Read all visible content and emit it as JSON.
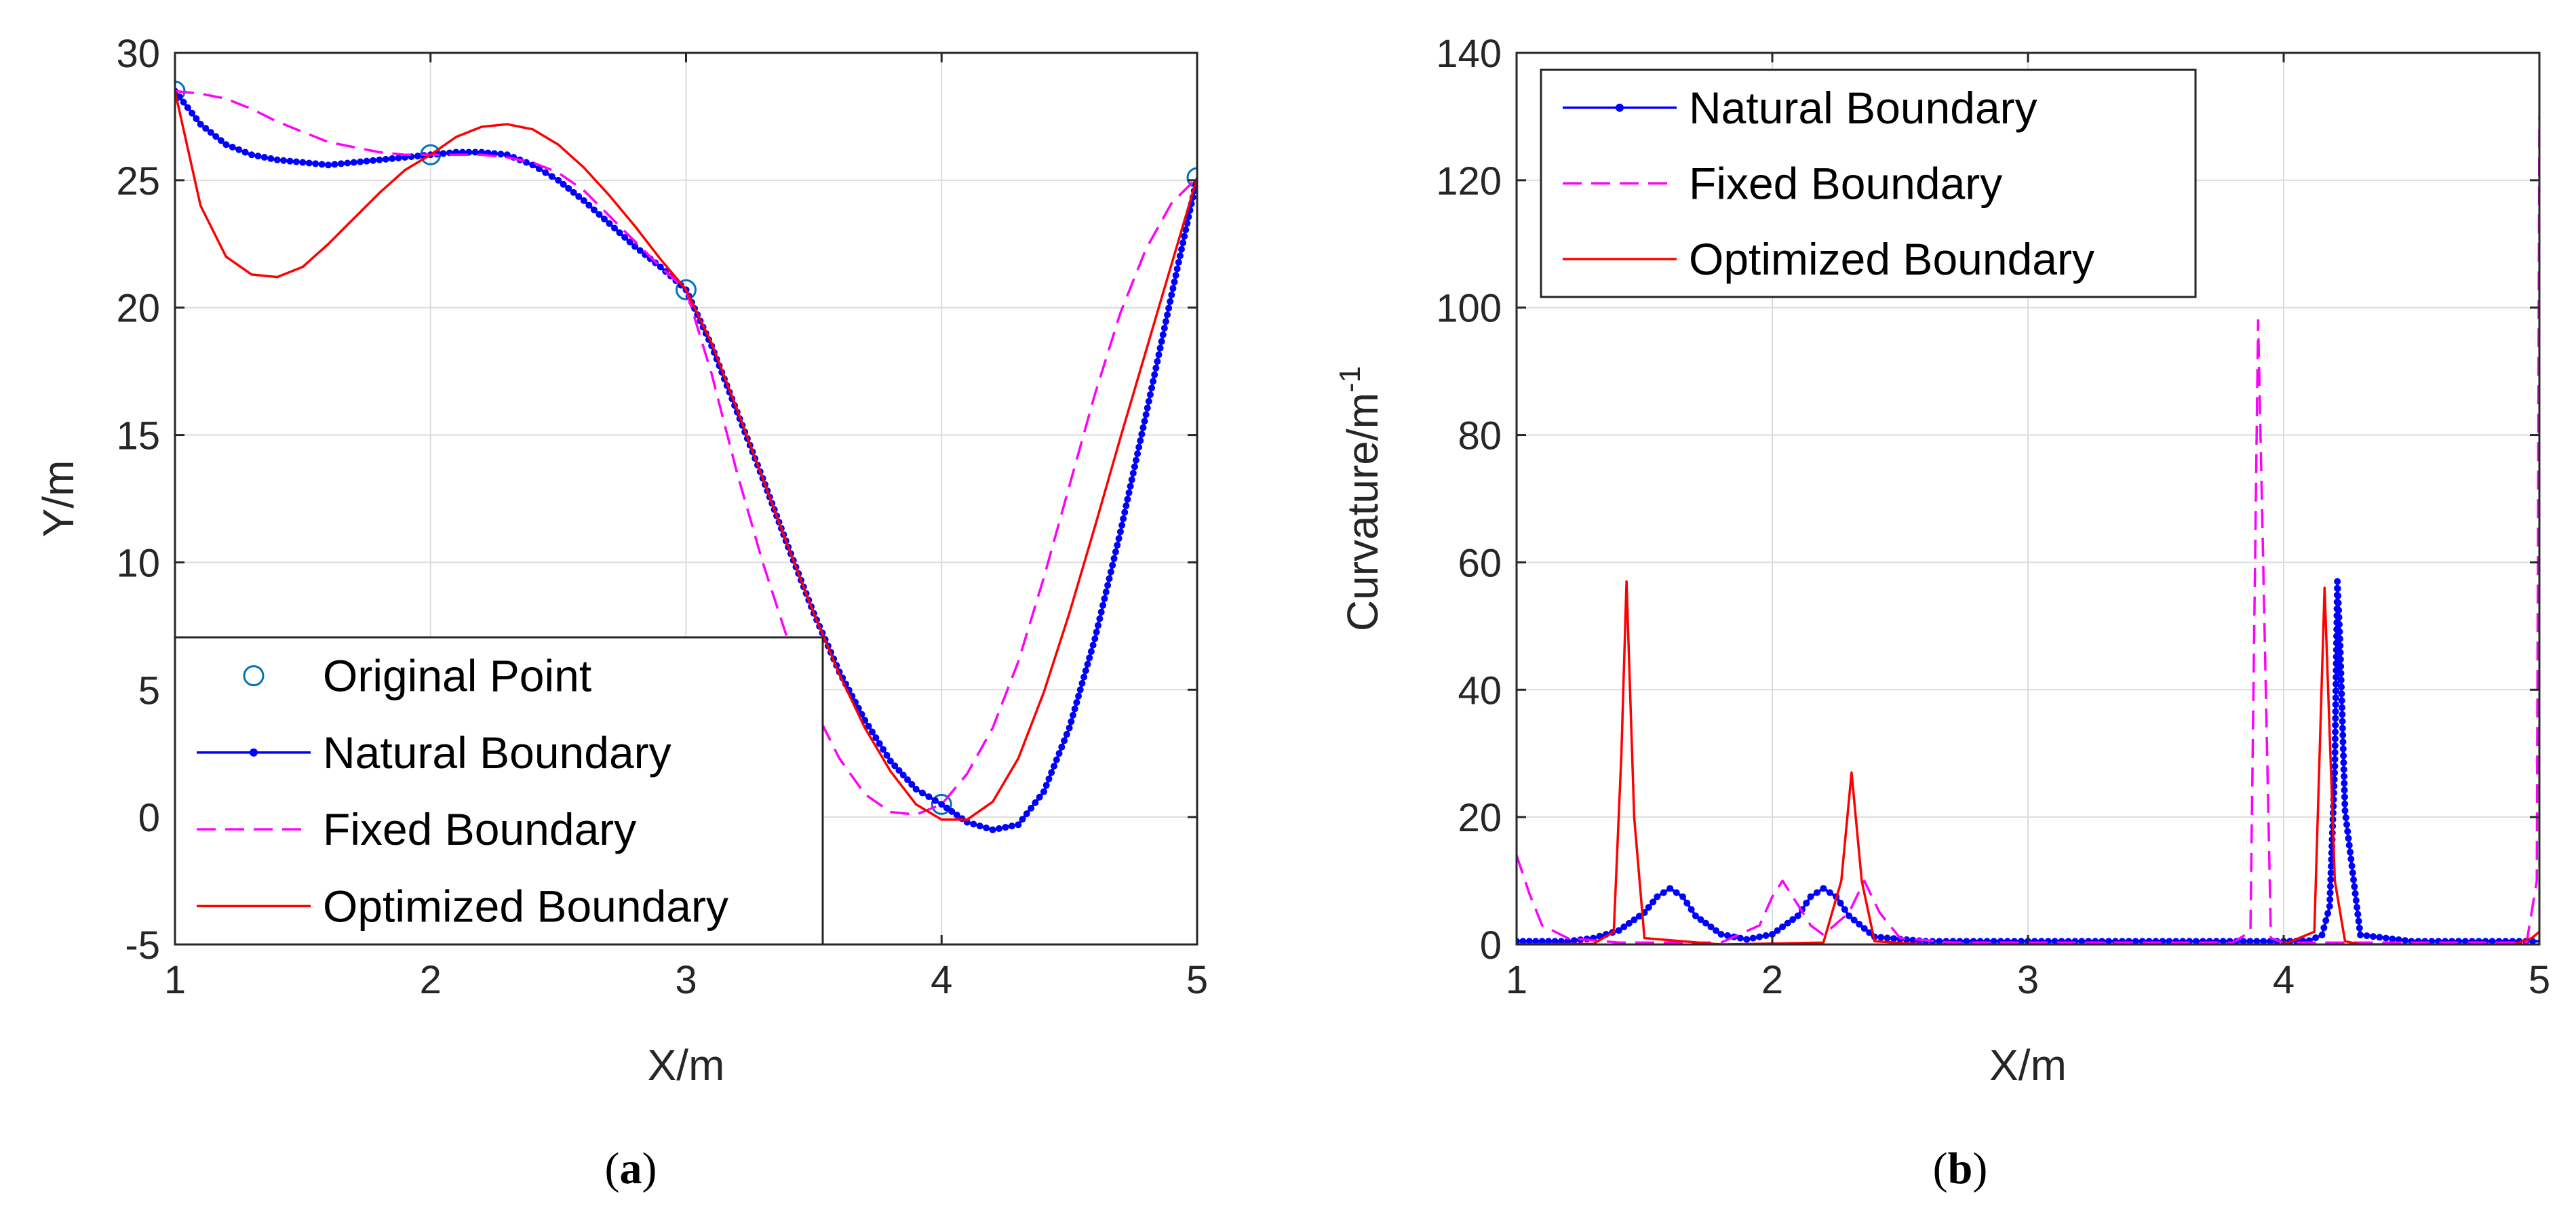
{
  "chart_data": [
    {
      "type": "line",
      "panel": "a",
      "caption": {
        "open": "(",
        "letter": "a",
        "close": ")"
      },
      "xlabel": "X/m",
      "ylabel": "Y/m",
      "xlim": [
        1,
        5
      ],
      "ylim": [
        -5,
        30
      ],
      "xticks": [
        "1",
        "2",
        "3",
        "4",
        "5"
      ],
      "yticks": [
        "-5",
        "0",
        "5",
        "10",
        "15",
        "20",
        "25",
        "30"
      ],
      "grid": true,
      "legend_position": "bottom-left",
      "series": [
        {
          "name": "Original Point",
          "style": "markers-circle",
          "color": "#0072BD",
          "x": [
            1,
            2,
            3,
            4,
            5
          ],
          "y": [
            28.5,
            26.0,
            20.7,
            0.5,
            25.1
          ]
        },
        {
          "name": "Natural Boundary",
          "style": "line-dots",
          "color": "#0000FF",
          "x": [
            1.0,
            1.1,
            1.2,
            1.3,
            1.4,
            1.5,
            1.6,
            1.7,
            1.8,
            1.9,
            2.0,
            2.1,
            2.2,
            2.3,
            2.4,
            2.5,
            2.6,
            2.7,
            2.8,
            2.9,
            3.0,
            3.1,
            3.2,
            3.3,
            3.4,
            3.5,
            3.6,
            3.7,
            3.8,
            3.9,
            4.0,
            4.1,
            4.2,
            4.3,
            4.4,
            4.5,
            4.6,
            4.7,
            4.8,
            4.9,
            5.0
          ],
          "y": [
            28.5,
            27.2,
            26.4,
            26.0,
            25.8,
            25.7,
            25.6,
            25.7,
            25.8,
            25.9,
            26.0,
            26.1,
            26.1,
            26.0,
            25.6,
            25.0,
            24.2,
            23.3,
            22.4,
            21.6,
            20.7,
            18.5,
            15.9,
            13.3,
            10.6,
            8.0,
            5.7,
            3.8,
            2.2,
            1.1,
            0.5,
            -0.2,
            -0.5,
            -0.3,
            1.0,
            3.5,
            7.0,
            11.2,
            15.8,
            20.5,
            25.1
          ]
        },
        {
          "name": "Fixed Boundary",
          "style": "dashed",
          "color": "#FF00FF",
          "x": [
            1.0,
            1.1,
            1.2,
            1.3,
            1.4,
            1.5,
            1.6,
            1.7,
            1.8,
            1.9,
            2.0,
            2.1,
            2.2,
            2.3,
            2.4,
            2.5,
            2.6,
            2.7,
            2.8,
            2.9,
            3.0,
            3.1,
            3.2,
            3.3,
            3.4,
            3.5,
            3.6,
            3.7,
            3.8,
            3.9,
            4.0,
            4.1,
            4.2,
            4.3,
            4.4,
            4.5,
            4.6,
            4.7,
            4.8,
            4.9,
            5.0
          ],
          "y": [
            28.5,
            28.4,
            28.2,
            27.8,
            27.3,
            26.9,
            26.5,
            26.3,
            26.1,
            26.0,
            26.0,
            26.0,
            26.0,
            25.9,
            25.7,
            25.3,
            24.6,
            23.6,
            22.6,
            21.6,
            20.7,
            17.4,
            13.5,
            10.0,
            6.9,
            4.3,
            2.3,
            0.9,
            0.2,
            0.1,
            0.5,
            1.7,
            3.5,
            6.1,
            9.4,
            13.0,
            16.6,
            19.8,
            22.3,
            24.1,
            25.1
          ]
        },
        {
          "name": "Optimized Boundary",
          "style": "solid",
          "color": "#FF0000",
          "x": [
            1.0,
            1.1,
            1.2,
            1.3,
            1.4,
            1.5,
            1.6,
            1.7,
            1.8,
            1.9,
            2.0,
            2.1,
            2.2,
            2.3,
            2.4,
            2.5,
            2.6,
            2.7,
            2.8,
            2.9,
            3.0,
            3.1,
            3.2,
            3.3,
            3.4,
            3.5,
            3.6,
            3.7,
            3.8,
            3.9,
            4.0,
            4.1,
            4.2,
            4.3,
            4.4,
            4.5,
            4.6,
            4.7,
            4.8,
            4.9,
            5.0
          ],
          "y": [
            28.5,
            24.0,
            22.0,
            21.3,
            21.2,
            21.6,
            22.5,
            23.5,
            24.5,
            25.4,
            26.0,
            26.7,
            27.1,
            27.2,
            27.0,
            26.4,
            25.5,
            24.4,
            23.2,
            21.9,
            20.7,
            18.6,
            16.0,
            13.3,
            10.6,
            8.0,
            5.6,
            3.5,
            1.8,
            0.5,
            -0.1,
            -0.1,
            0.6,
            2.3,
            4.9,
            8.0,
            11.4,
            14.9,
            18.3,
            21.7,
            25.1
          ]
        }
      ]
    },
    {
      "type": "line",
      "panel": "b",
      "caption": {
        "open": "(",
        "letter": "b",
        "close": ")"
      },
      "xlabel": "X/m",
      "ylabel": "Curvature/m",
      "ylabel_superscript": "-1",
      "xlim": [
        1,
        5
      ],
      "ylim": [
        0,
        140
      ],
      "xticks": [
        "1",
        "2",
        "3",
        "4",
        "5"
      ],
      "yticks": [
        "0",
        "20",
        "40",
        "60",
        "80",
        "100",
        "120",
        "140"
      ],
      "grid": true,
      "legend_position": "top-left",
      "series": [
        {
          "name": "Natural Boundary",
          "style": "line-dots",
          "color": "#0000FF",
          "x": [
            1.0,
            1.2,
            1.3,
            1.4,
            1.5,
            1.55,
            1.6,
            1.65,
            1.7,
            1.8,
            1.9,
            2.0,
            2.1,
            2.15,
            2.2,
            2.25,
            2.3,
            2.4,
            2.6,
            3.0,
            3.5,
            4.0,
            4.1,
            4.15,
            4.18,
            4.2,
            4.21,
            4.22,
            4.24,
            4.3,
            4.5,
            5.0
          ],
          "y": [
            0.5,
            0.5,
            1.0,
            2.2,
            5.0,
            7.5,
            8.8,
            7.5,
            4.5,
            1.6,
            0.8,
            1.6,
            4.5,
            7.5,
            8.8,
            7.5,
            4.5,
            1.2,
            0.5,
            0.5,
            0.5,
            0.5,
            0.6,
            1.5,
            6.0,
            28.0,
            57.0,
            48.0,
            21.0,
            1.5,
            0.5,
            0.5
          ]
        },
        {
          "name": "Fixed Boundary",
          "style": "dashed",
          "color": "#FF00FF",
          "x": [
            1.0,
            1.05,
            1.1,
            1.2,
            1.4,
            1.8,
            1.95,
            2.0,
            2.04,
            2.08,
            2.15,
            2.2,
            2.3,
            2.36,
            2.42,
            2.5,
            2.7,
            3.0,
            3.5,
            3.8,
            3.87,
            3.9,
            3.92,
            3.95,
            4.0,
            4.5,
            4.95,
            4.99,
            5.0
          ],
          "y": [
            14.0,
            8.0,
            3.0,
            1.0,
            0.3,
            0.3,
            3.0,
            7.5,
            10.0,
            7.5,
            3.0,
            1.5,
            5.0,
            10.0,
            5.0,
            1.0,
            0.3,
            0.3,
            0.3,
            0.3,
            2.0,
            98.0,
            60.0,
            1.0,
            0.3,
            0.3,
            0.3,
            10.0,
            130.0
          ]
        },
        {
          "name": "Optimized Boundary",
          "style": "solid",
          "color": "#FF0000",
          "x": [
            1.0,
            1.3,
            1.38,
            1.41,
            1.43,
            1.46,
            1.5,
            1.8,
            2.2,
            2.27,
            2.31,
            2.35,
            2.4,
            2.6,
            3.0,
            3.5,
            4.0,
            4.12,
            4.16,
            4.2,
            4.24,
            4.3,
            4.9,
            4.97,
            5.0
          ],
          "y": [
            0.0,
            0.1,
            2.0,
            30.0,
            57.0,
            20.0,
            1.0,
            0.0,
            0.3,
            10.0,
            27.0,
            10.0,
            0.5,
            0.0,
            0.0,
            0.0,
            0.0,
            2.0,
            56.0,
            10.0,
            0.5,
            0.0,
            0.0,
            1.0,
            2.0
          ]
        }
      ]
    }
  ]
}
